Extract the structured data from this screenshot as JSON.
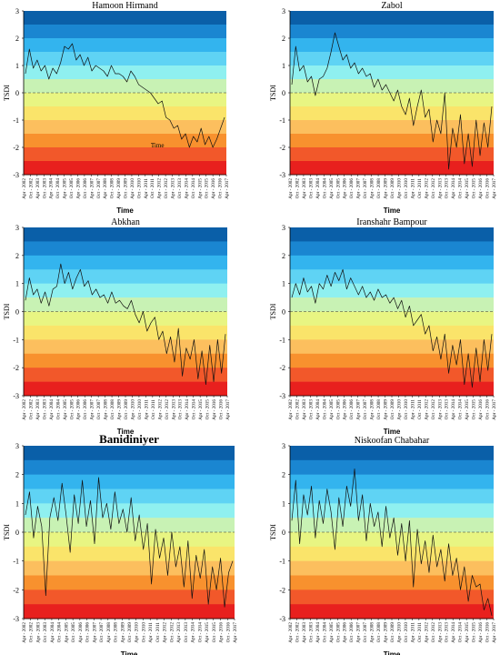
{
  "chart_data": [
    {
      "type": "line",
      "title": "Hamoon Hirmand",
      "xlabel": "Time",
      "ylabel": "TSDI",
      "annotation": "Time",
      "ylim": [
        -3,
        3
      ],
      "yticks": [
        "3",
        "2",
        "1",
        "0",
        "-1",
        "-2",
        "-3"
      ],
      "xticks": [
        "Apr - 2002",
        "Oct - 2002",
        "Apr - 2003",
        "Oct - 2003",
        "Apr - 2004",
        "Oct - 2004",
        "Apr - 2005",
        "Oct - 2005",
        "Apr - 2006",
        "Oct - 2006",
        "Apr - 2007",
        "Oct - 2007",
        "Apr - 2008",
        "Oct - 2008",
        "Apr - 2009",
        "Oct - 2009",
        "Apr - 2010",
        "Oct - 2010",
        "Apr - 2011",
        "Oct - 2011",
        "Apr - 2012",
        "Oct - 2012",
        "Apr - 2013",
        "Oct - 2013",
        "Apr - 2014",
        "Oct - 2014",
        "Apr - 2015",
        "Oct - 2015",
        "Apr - 2016",
        "Oct - 2016",
        "Apr - 2017"
      ],
      "band_colors": [
        "#0a5fa8",
        "#1a86d1",
        "#33b4ee",
        "#5fd3f4",
        "#8ff0f0",
        "#c8f2b4",
        "#e8f582",
        "#fae46a",
        "#fcbf5e",
        "#f8912e",
        "#f2582a",
        "#e8201e"
      ],
      "series": [
        {
          "values": [
            0.7,
            1.6,
            0.9,
            1.2,
            0.8,
            1.0,
            0.5,
            0.9,
            0.7,
            1.1,
            1.7,
            1.6,
            1.8,
            1.2,
            1.4,
            1.0,
            1.3,
            0.8,
            1.0,
            0.9,
            0.8,
            0.6,
            1.0,
            0.7,
            0.7,
            0.6,
            0.4,
            0.8,
            0.6,
            0.3,
            0.2,
            0.1,
            0.0,
            -0.2,
            -0.4,
            -0.3,
            -0.9,
            -1.0,
            -1.3,
            -1.2,
            -1.7,
            -1.5,
            -2.0,
            -1.6,
            -1.8,
            -1.3,
            -1.9,
            -1.6,
            -2.0,
            -1.7,
            -1.3,
            -0.9
          ]
        }
      ]
    },
    {
      "type": "line",
      "title": "Zabol",
      "xlabel": "Time",
      "ylabel": "TSDI",
      "ylim": [
        -3,
        3
      ],
      "yticks": [
        "3",
        "2",
        "1",
        "0",
        "-1",
        "-2",
        "-3"
      ],
      "xticks": [
        "Apr - 2002",
        "Oct - 2002",
        "Apr - 2003",
        "Oct - 2003",
        "Apr - 2004",
        "Oct - 2004",
        "Apr - 2005",
        "Oct - 2005",
        "Apr - 2006",
        "Oct - 2006",
        "Apr - 2007",
        "Oct - 2007",
        "Apr - 2008",
        "Oct - 2008",
        "Apr - 2009",
        "Oct - 2009",
        "Apr - 2010",
        "Oct - 2010",
        "Apr - 2011",
        "Oct - 2011",
        "Apr - 2012",
        "Oct - 2012",
        "Apr - 2013",
        "Oct - 2013",
        "Apr - 2014",
        "Oct - 2014",
        "Apr - 2015",
        "Oct - 2015",
        "Apr - 2016",
        "Oct - 2016",
        "Apr - 2017"
      ],
      "band_colors": [
        "#0a5fa8",
        "#1a86d1",
        "#33b4ee",
        "#5fd3f4",
        "#8ff0f0",
        "#c8f2b4",
        "#e8f582",
        "#fae46a",
        "#fcbf5e",
        "#f8912e",
        "#f2582a",
        "#e8201e"
      ],
      "series": [
        {
          "values": [
            0.3,
            1.7,
            0.8,
            1.0,
            0.4,
            0.6,
            -0.1,
            0.5,
            0.6,
            0.9,
            1.5,
            2.2,
            1.7,
            1.2,
            1.4,
            0.9,
            1.1,
            0.7,
            0.9,
            0.6,
            0.7,
            0.2,
            0.5,
            0.1,
            0.3,
            0.0,
            -0.3,
            0.1,
            -0.5,
            -0.8,
            -0.2,
            -1.2,
            -0.5,
            0.1,
            -0.9,
            -0.6,
            -1.8,
            -1.0,
            -1.5,
            0.0,
            -2.8,
            -1.3,
            -2.0,
            -0.8,
            -2.6,
            -1.5,
            -2.7,
            -1.0,
            -2.3,
            -1.1,
            -2.0,
            -0.5
          ]
        }
      ]
    },
    {
      "type": "line",
      "title": "Abkhan",
      "xlabel": "Time",
      "ylabel": "TSDI",
      "ylim": [
        -3,
        3
      ],
      "yticks": [
        "3",
        "2",
        "1",
        "0",
        "-1",
        "-2",
        "-3"
      ],
      "xticks": [
        "Apr - 2002",
        "Oct - 2002",
        "Apr - 2003",
        "Oct - 2003",
        "Apr - 2004",
        "Oct - 2004",
        "Apr - 2005",
        "Oct - 2005",
        "Apr - 2006",
        "Oct - 2006",
        "Apr - 2007",
        "Oct - 2007",
        "Apr - 2008",
        "Oct - 2008",
        "Apr - 2009",
        "Oct - 2009",
        "Apr - 2010",
        "Oct - 2010",
        "Apr - 2011",
        "Oct - 2011",
        "Apr - 2012",
        "Oct - 2012",
        "Apr - 2013",
        "Oct - 2013",
        "Apr - 2014",
        "Oct - 2014",
        "Apr - 2015",
        "Oct - 2015",
        "Apr - 2016",
        "Oct - 2016",
        "Apr - 2017"
      ],
      "band_colors": [
        "#0a5fa8",
        "#1a86d1",
        "#33b4ee",
        "#5fd3f4",
        "#8ff0f0",
        "#c8f2b4",
        "#e8f582",
        "#fae46a",
        "#fcbf5e",
        "#f8912e",
        "#f2582a",
        "#e8201e"
      ],
      "series": [
        {
          "values": [
            0.4,
            1.2,
            0.6,
            0.8,
            0.3,
            0.7,
            0.2,
            0.8,
            0.9,
            1.7,
            1.0,
            1.4,
            0.8,
            1.2,
            1.5,
            0.9,
            1.1,
            0.6,
            0.8,
            0.5,
            0.6,
            0.3,
            0.7,
            0.3,
            0.4,
            0.2,
            0.1,
            0.4,
            -0.1,
            -0.4,
            0.0,
            -0.7,
            -0.4,
            -0.2,
            -1.0,
            -0.7,
            -1.5,
            -0.9,
            -1.8,
            -0.6,
            -2.3,
            -1.3,
            -1.7,
            -1.0,
            -2.4,
            -1.4,
            -2.6,
            -1.2,
            -2.5,
            -1.0,
            -2.2,
            -0.8
          ]
        }
      ]
    },
    {
      "type": "line",
      "title": "Iranshahr Bampour",
      "xlabel": "Time",
      "ylabel": "TSDI",
      "ylim": [
        -3,
        3
      ],
      "yticks": [
        "3",
        "2",
        "1",
        "0",
        "-1",
        "-2",
        "-3"
      ],
      "xticks": [
        "Apr - 2002",
        "Oct - 2002",
        "Apr - 2003",
        "Oct - 2003",
        "Apr - 2004",
        "Oct - 2004",
        "Apr - 2005",
        "Oct - 2005",
        "Apr - 2006",
        "Oct - 2006",
        "Apr - 2007",
        "Oct - 2007",
        "Apr - 2008",
        "Oct - 2008",
        "Apr - 2009",
        "Oct - 2009",
        "Apr - 2010",
        "Oct - 2010",
        "Apr - 2011",
        "Oct - 2011",
        "Apr - 2012",
        "Oct - 2012",
        "Apr - 2013",
        "Oct - 2013",
        "Apr - 2014",
        "Oct - 2014",
        "Apr - 2015",
        "Oct - 2015",
        "Apr - 2016",
        "Oct - 2016",
        "Apr - 2017"
      ],
      "band_colors": [
        "#0a5fa8",
        "#1a86d1",
        "#33b4ee",
        "#5fd3f4",
        "#8ff0f0",
        "#c8f2b4",
        "#e8f582",
        "#fae46a",
        "#fcbf5e",
        "#f8912e",
        "#f2582a",
        "#e8201e"
      ],
      "series": [
        {
          "values": [
            0.5,
            1.0,
            0.6,
            1.2,
            0.7,
            0.9,
            0.3,
            1.0,
            0.8,
            1.3,
            0.9,
            1.4,
            1.1,
            1.5,
            0.8,
            1.2,
            0.9,
            0.6,
            0.9,
            0.5,
            0.7,
            0.4,
            0.8,
            0.5,
            0.6,
            0.3,
            0.5,
            0.1,
            0.4,
            -0.2,
            0.2,
            -0.5,
            -0.3,
            -0.1,
            -0.8,
            -0.5,
            -1.4,
            -0.9,
            -1.7,
            -0.8,
            -2.2,
            -1.2,
            -1.9,
            -1.0,
            -2.6,
            -1.5,
            -2.7,
            -1.3,
            -2.5,
            -1.0,
            -2.1,
            -0.8
          ]
        }
      ]
    },
    {
      "type": "line",
      "title": "Banidiniyer",
      "xlabel": "Time",
      "ylabel": "TSDI",
      "ylim": [
        -3,
        3
      ],
      "yticks": [
        "3",
        "2",
        "1",
        "0",
        "-1",
        "-2",
        "-3"
      ],
      "xticks": [
        "Apr - 2002",
        "Oct - 2002",
        "Apr - 2003",
        "Oct - 2003",
        "Apr - 2004",
        "Oct - 2004",
        "Apr - 2005",
        "Oct - 2005",
        "Apr - 2006",
        "Oct - 2006",
        "Apr - 2007",
        "Oct - 2007",
        "Apr - 2008",
        "Oct - 2008",
        "Apr - 2009",
        "Oct - 2009",
        "Apr - 2010",
        "Oct - 2010",
        "Apr - 2011",
        "Oct - 2011",
        "Apr - 2012",
        "Oct - 2012",
        "Apr - 2013",
        "Oct - 2013",
        "Apr - 2014",
        "Oct - 2014",
        "Apr - 2015",
        "Oct - 2015",
        "Apr - 2016",
        "Oct - 2016",
        "Apr - 2017"
      ],
      "band_colors": [
        "#0a5fa8",
        "#1a86d1",
        "#33b4ee",
        "#5fd3f4",
        "#8ff0f0",
        "#c8f2b4",
        "#e8f582",
        "#fae46a",
        "#fcbf5e",
        "#f8912e",
        "#f2582a",
        "#e8201e"
      ],
      "series": [
        {
          "values": [
            0.6,
            1.4,
            -0.2,
            0.9,
            0.2,
            -2.2,
            0.5,
            1.2,
            0.4,
            1.7,
            0.6,
            -0.7,
            1.3,
            0.3,
            1.8,
            0.2,
            1.1,
            -0.4,
            1.9,
            0.5,
            1.0,
            0.1,
            1.4,
            0.3,
            0.8,
            0.0,
            1.2,
            -0.3,
            0.6,
            -0.6,
            0.3,
            -1.8,
            0.1,
            -0.9,
            -0.2,
            -1.5,
            0.0,
            -1.2,
            -0.5,
            -1.9,
            -0.3,
            -2.3,
            -0.8,
            -1.6,
            -0.6,
            -2.5,
            -1.2,
            -2.0,
            -0.9,
            -2.6,
            -1.4,
            -1.0
          ]
        }
      ]
    },
    {
      "type": "line",
      "title": "Niskoofan Chabahar",
      "xlabel": "Time",
      "ylabel": "TSDI",
      "ylim": [
        -3,
        3
      ],
      "yticks": [
        "3",
        "2",
        "1",
        "0",
        "-1",
        "-2",
        "-3"
      ],
      "xticks": [
        "Apr - 2002",
        "Oct - 2002",
        "Apr - 2003",
        "Oct - 2003",
        "Apr - 2004",
        "Oct - 2004",
        "Apr - 2005",
        "Oct - 2005",
        "Apr - 2006",
        "Oct - 2006",
        "Apr - 2007",
        "Oct - 2007",
        "Apr - 2008",
        "Oct - 2008",
        "Apr - 2009",
        "Oct - 2009",
        "Apr - 2010",
        "Oct - 2010",
        "Apr - 2011",
        "Oct - 2011",
        "Apr - 2012",
        "Oct - 2012",
        "Apr - 2013",
        "Oct - 2013",
        "Apr - 2014",
        "Oct - 2014",
        "Apr - 2015",
        "Oct - 2015",
        "Apr - 2016",
        "Oct - 2016",
        "Apr - 2017"
      ],
      "band_colors": [
        "#0a5fa8",
        "#1a86d1",
        "#33b4ee",
        "#5fd3f4",
        "#8ff0f0",
        "#c8f2b4",
        "#e8f582",
        "#fae46a",
        "#fcbf5e",
        "#f8912e",
        "#f2582a",
        "#e8201e"
      ],
      "series": [
        {
          "values": [
            0.4,
            1.8,
            -0.4,
            1.3,
            0.6,
            1.6,
            -0.2,
            1.1,
            0.3,
            1.5,
            0.7,
            -0.6,
            1.2,
            0.2,
            1.6,
            0.9,
            2.2,
            0.4,
            1.3,
            -0.3,
            1.0,
            0.2,
            0.7,
            -0.5,
            0.9,
            -0.2,
            0.5,
            -0.8,
            0.3,
            -1.0,
            0.4,
            -1.9,
            0.1,
            -1.1,
            -0.3,
            -1.4,
            -0.1,
            -1.2,
            -0.6,
            -1.7,
            -0.4,
            -1.5,
            -0.9,
            -2.0,
            -1.2,
            -2.4,
            -1.5,
            -1.9,
            -1.8,
            -2.7,
            -2.3,
            -2.9
          ]
        }
      ]
    }
  ]
}
